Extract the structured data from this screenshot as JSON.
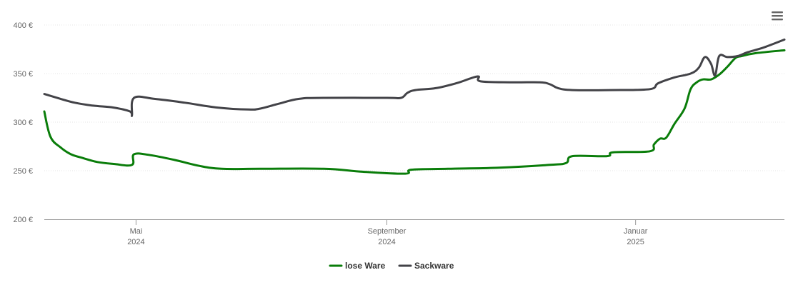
{
  "chart_data": {
    "type": "line",
    "x_axis": {
      "type": "datetime",
      "range": [
        "2024-03-17",
        "2025-03-15"
      ],
      "ticks": [
        {
          "date": "2024-05-01",
          "label": "Mai",
          "year": "2024"
        },
        {
          "date": "2024-09-01",
          "label": "September",
          "year": "2024"
        },
        {
          "date": "2025-01-01",
          "label": "Januar",
          "year": "2025"
        }
      ]
    },
    "y_axis": {
      "range": [
        200,
        400
      ],
      "ticks": [
        200,
        250,
        300,
        350,
        400
      ],
      "tick_labels": [
        "200 €",
        "250 €",
        "300 €",
        "350 €",
        "400 €"
      ],
      "grid": true
    },
    "legend": {
      "placement": "bottom-center"
    },
    "series": [
      {
        "name": "lose Ware",
        "color": "#0a7d0a",
        "points": [
          [
            "2024-03-17",
            311
          ],
          [
            "2024-03-20",
            285
          ],
          [
            "2024-03-25",
            274
          ],
          [
            "2024-03-30",
            267
          ],
          [
            "2024-04-05",
            263
          ],
          [
            "2024-04-12",
            259
          ],
          [
            "2024-04-20",
            257
          ],
          [
            "2024-04-29",
            256
          ],
          [
            "2024-04-30",
            267
          ],
          [
            "2024-05-08",
            266
          ],
          [
            "2024-05-20",
            261
          ],
          [
            "2024-06-01",
            255
          ],
          [
            "2024-06-12",
            252
          ],
          [
            "2024-07-01",
            252
          ],
          [
            "2024-08-01",
            252
          ],
          [
            "2024-08-20",
            249
          ],
          [
            "2024-09-10",
            247
          ],
          [
            "2024-09-13",
            251
          ],
          [
            "2024-10-01",
            252
          ],
          [
            "2024-10-25",
            253
          ],
          [
            "2024-11-20",
            256
          ],
          [
            "2024-11-28",
            258
          ],
          [
            "2024-12-01",
            265
          ],
          [
            "2024-12-18",
            265
          ],
          [
            "2024-12-21",
            269
          ],
          [
            "2025-01-08",
            270
          ],
          [
            "2025-01-10",
            277
          ],
          [
            "2025-01-13",
            283
          ],
          [
            "2025-01-16",
            284
          ],
          [
            "2025-01-20",
            298
          ],
          [
            "2025-01-25",
            314
          ],
          [
            "2025-01-28",
            334
          ],
          [
            "2025-01-31",
            341
          ],
          [
            "2025-02-03",
            344
          ],
          [
            "2025-02-07",
            344
          ],
          [
            "2025-02-11",
            349
          ],
          [
            "2025-02-15",
            357
          ],
          [
            "2025-02-19",
            366
          ],
          [
            "2025-02-22",
            368
          ],
          [
            "2025-03-01",
            371
          ],
          [
            "2025-03-15",
            374
          ]
        ]
      },
      {
        "name": "Sackware",
        "color": "#434348",
        "points": [
          [
            "2024-03-17",
            329
          ],
          [
            "2024-03-25",
            324
          ],
          [
            "2024-04-01",
            320
          ],
          [
            "2024-04-10",
            317
          ],
          [
            "2024-04-20",
            315
          ],
          [
            "2024-04-28",
            311
          ],
          [
            "2024-04-29",
            307
          ],
          [
            "2024-04-30",
            325
          ],
          [
            "2024-05-10",
            324
          ],
          [
            "2024-05-25",
            320
          ],
          [
            "2024-06-10",
            315
          ],
          [
            "2024-06-25",
            313
          ],
          [
            "2024-07-01",
            314
          ],
          [
            "2024-07-10",
            319
          ],
          [
            "2024-07-20",
            324
          ],
          [
            "2024-08-01",
            325
          ],
          [
            "2024-09-01",
            325
          ],
          [
            "2024-09-08",
            325
          ],
          [
            "2024-09-11",
            330
          ],
          [
            "2024-09-15",
            333
          ],
          [
            "2024-09-25",
            335
          ],
          [
            "2024-10-05",
            340
          ],
          [
            "2024-10-12",
            345
          ],
          [
            "2024-10-16",
            347
          ],
          [
            "2024-10-17",
            342
          ],
          [
            "2024-11-01",
            341
          ],
          [
            "2024-11-15",
            341
          ],
          [
            "2024-11-20",
            339
          ],
          [
            "2024-11-24",
            335
          ],
          [
            "2024-12-01",
            333
          ],
          [
            "2024-12-20",
            333
          ],
          [
            "2025-01-08",
            334
          ],
          [
            "2025-01-12",
            340
          ],
          [
            "2025-01-20",
            346
          ],
          [
            "2025-01-28",
            350
          ],
          [
            "2025-02-01",
            356
          ],
          [
            "2025-02-04",
            367
          ],
          [
            "2025-02-07",
            360
          ],
          [
            "2025-02-09",
            348
          ],
          [
            "2025-02-11",
            368
          ],
          [
            "2025-02-15",
            367
          ],
          [
            "2025-02-20",
            368
          ],
          [
            "2025-02-25",
            372
          ],
          [
            "2025-03-05",
            377
          ],
          [
            "2025-03-15",
            385
          ]
        ]
      }
    ]
  }
}
